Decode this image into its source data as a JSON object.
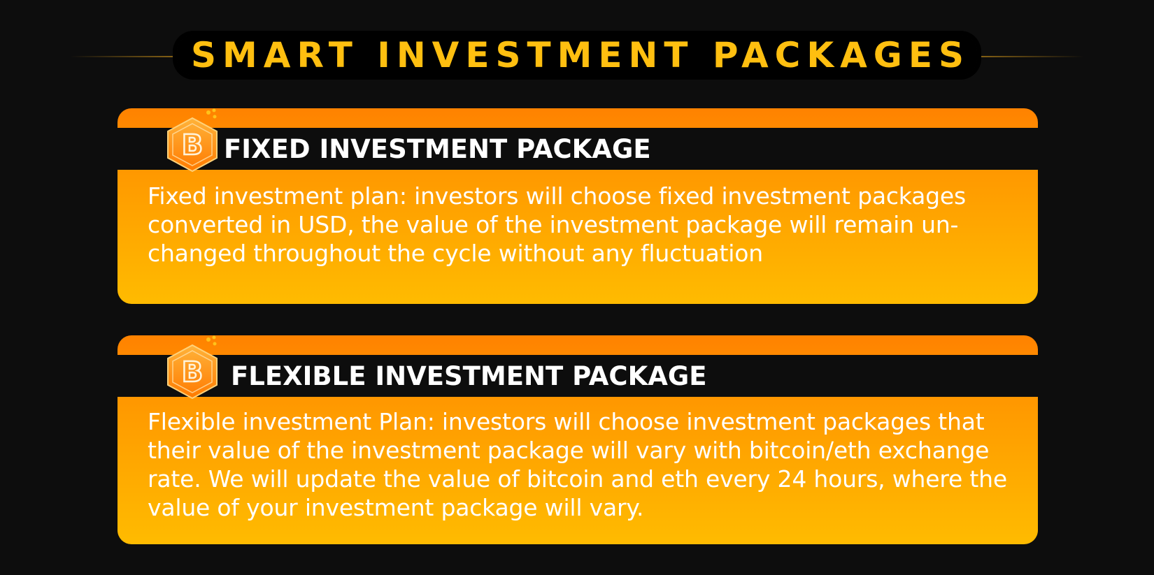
{
  "page": {
    "title": "SMART INVESTMENT PACKAGES",
    "colors": {
      "background": "#0d0d0d",
      "title": "#ffbf10",
      "card_top": "#ff8200",
      "card_bottom": "#ffbb00",
      "text": "#ffffff"
    }
  },
  "packages": [
    {
      "icon": "bitcoin-hexagon-icon",
      "title": "FIXED INVESTMENT PACKAGE",
      "description": "Fixed investment plan: investors will choose fixed investment packages converted in USD, the value of the investment package will remain un-changed throughout the cycle without any fluctuation"
    },
    {
      "icon": "bitcoin-hexagon-icon",
      "title": "FLEXIBLE INVESTMENT PACKAGE",
      "description": "Flexible investment Plan: investors will choose investment packages that their value of the investment package will vary with bitcoin/eth exchange rate. We will update the value of bitcoin and eth every 24 hours, where the value of your investment package will vary."
    }
  ]
}
